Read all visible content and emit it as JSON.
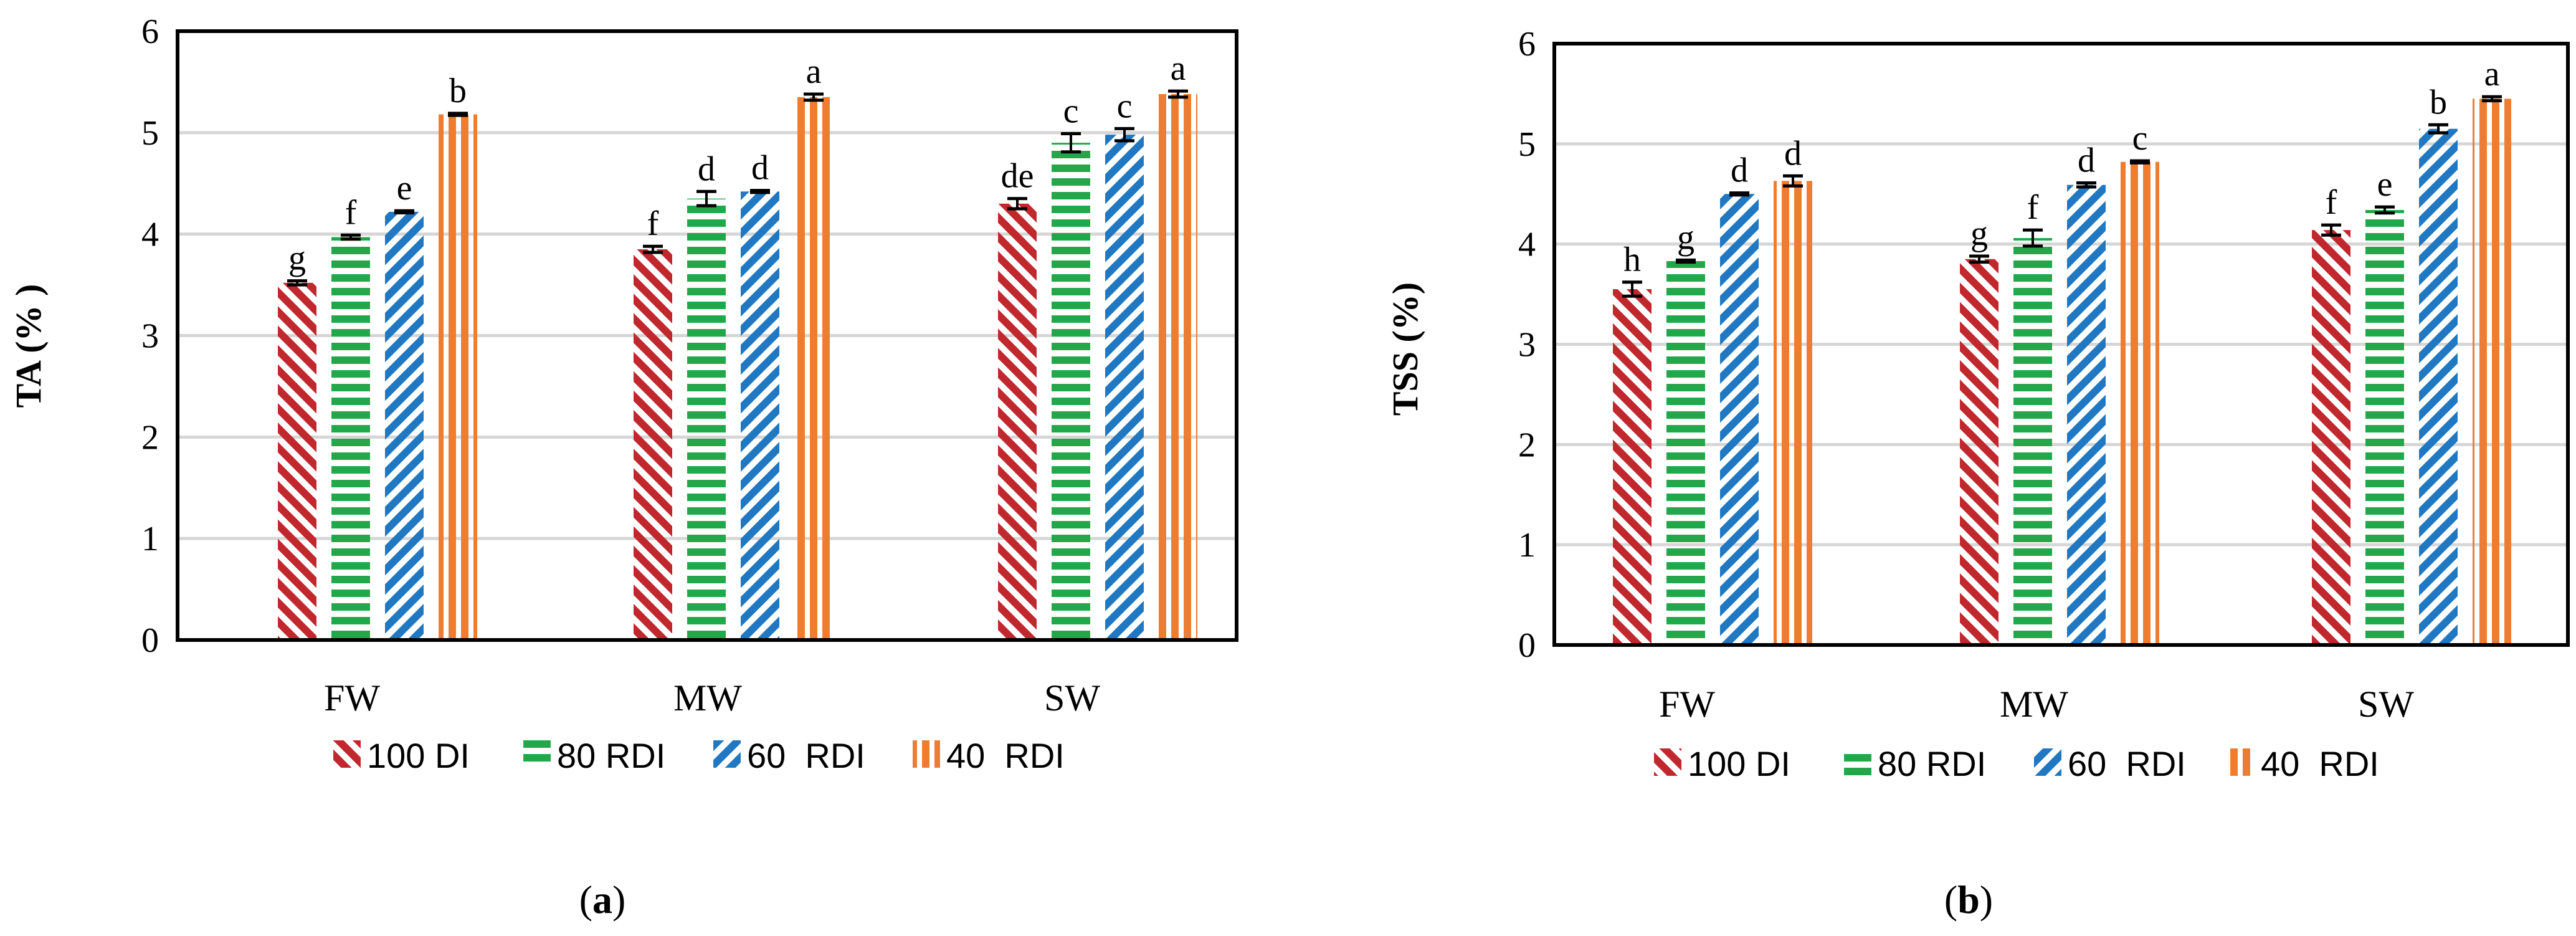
{
  "colors": {
    "100 DI": "#c0282d",
    "80 RDI": "#22a84a",
    "60  RDI": "#1f78c1",
    "40  RDI": "#ee7d31"
  },
  "chart_data": [
    {
      "type": "bar",
      "panel": "(a)",
      "ylabel": "TA (% )",
      "categories": [
        "FW",
        "MW",
        "SW"
      ],
      "ylim": [
        0,
        6
      ],
      "yticks": [
        0,
        1,
        2,
        3,
        4,
        5,
        6
      ],
      "grid": true,
      "legend_position": "bottom",
      "series": [
        {
          "name": "100 DI",
          "values": [
            3.52,
            3.85,
            4.3
          ],
          "errors": [
            0.02,
            0.03,
            0.05
          ],
          "labels": [
            "g",
            "f",
            "de"
          ]
        },
        {
          "name": "80 RDI",
          "values": [
            3.97,
            4.35,
            4.9
          ],
          "errors": [
            0.02,
            0.07,
            0.09
          ],
          "labels": [
            "f",
            "d",
            "c"
          ]
        },
        {
          "name": "60  RDI",
          "values": [
            4.22,
            4.42,
            4.98
          ],
          "errors": [
            0.01,
            0.01,
            0.06
          ],
          "labels": [
            "e",
            "d",
            "c"
          ]
        },
        {
          "name": "40  RDI",
          "values": [
            5.18,
            5.35,
            5.38
          ],
          "errors": [
            0.01,
            0.03,
            0.03
          ],
          "labels": [
            "b",
            "a",
            "a"
          ]
        }
      ]
    },
    {
      "type": "bar",
      "panel": "(b)",
      "ylabel": "TSS (%)",
      "categories": [
        "FW",
        "MW",
        "SW"
      ],
      "ylim": [
        0,
        6
      ],
      "yticks": [
        0,
        1,
        2,
        3,
        4,
        5,
        6
      ],
      "grid": true,
      "legend_position": "bottom",
      "series": [
        {
          "name": "100 DI",
          "values": [
            3.55,
            3.85,
            4.14
          ],
          "errors": [
            0.07,
            0.03,
            0.05
          ],
          "labels": [
            "h",
            "g",
            "f"
          ]
        },
        {
          "name": "80 RDI",
          "values": [
            3.83,
            4.06,
            4.34
          ],
          "errors": [
            0.01,
            0.08,
            0.03
          ],
          "labels": [
            "g",
            "f",
            "e"
          ]
        },
        {
          "name": "60  RDI",
          "values": [
            4.5,
            4.59,
            5.15
          ],
          "errors": [
            0.01,
            0.02,
            0.04
          ],
          "labels": [
            "d",
            "d",
            "b"
          ]
        },
        {
          "name": "40  RDI",
          "values": [
            4.63,
            4.82,
            5.45
          ],
          "errors": [
            0.05,
            0.01,
            0.02
          ],
          "labels": [
            "d",
            "c",
            "a"
          ]
        }
      ]
    }
  ]
}
